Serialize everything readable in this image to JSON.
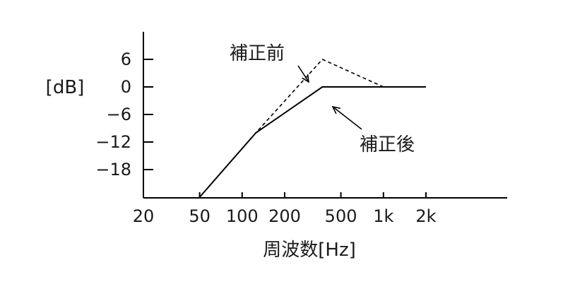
{
  "chart_data": {
    "type": "line",
    "xlabel": "周波数[Hz]",
    "ylabel": "[dB]",
    "x_scale": "log",
    "x_ticks": [
      20,
      50,
      100,
      200,
      500,
      1000,
      2000
    ],
    "x_tick_labels": [
      "20",
      "50",
      "100",
      "200",
      "500",
      "1k",
      "2k"
    ],
    "y_ticks": [
      6,
      0,
      -6,
      -12,
      -18
    ],
    "y_tick_labels": [
      "6",
      "0",
      "−6",
      "−12",
      "−18"
    ],
    "xlim": [
      20,
      3500
    ],
    "ylim": [
      -24,
      12
    ],
    "grid": false,
    "series": [
      {
        "name": "補正前",
        "style": "dashed",
        "points": [
          [
            50,
            -24
          ],
          [
            125,
            -10
          ],
          [
            370,
            6
          ],
          [
            1000,
            0
          ],
          [
            2000,
            0
          ]
        ]
      },
      {
        "name": "補正後",
        "style": "solid",
        "points": [
          [
            50,
            -24
          ],
          [
            125,
            -10
          ],
          [
            370,
            0
          ],
          [
            2000,
            0
          ]
        ]
      }
    ],
    "annotations": [
      {
        "text": "補正前",
        "target_series": 0
      },
      {
        "text": "補正後",
        "target_series": 1
      }
    ]
  },
  "colors": {
    "line": "#000000",
    "text": "#1a1a1a"
  }
}
